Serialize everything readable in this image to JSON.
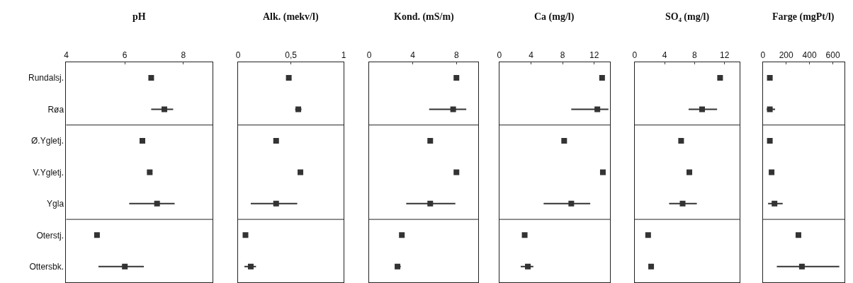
{
  "chart_data": [
    {
      "type": "scatter",
      "orientation": "horizontal",
      "title": "pH",
      "marker": "square",
      "categories": [
        "Rundalsj.",
        "Røa",
        "Ø.Ygletj.",
        "V.Ygletj.",
        "Ygla",
        "Oterstj.",
        "Ottersbk."
      ],
      "values": [
        6.9,
        7.35,
        6.6,
        6.85,
        7.1,
        5.05,
        6.0
      ],
      "errors": [
        null,
        [
          6.9,
          7.65
        ],
        null,
        null,
        [
          6.15,
          7.7
        ],
        null,
        [
          5.1,
          6.65
        ]
      ],
      "color": "#333333",
      "xlim": [
        4,
        9
      ],
      "xticks": [
        4,
        6,
        8
      ]
    },
    {
      "type": "scatter",
      "orientation": "horizontal",
      "title": "Alk. (mekv/l)",
      "marker": "square",
      "categories": [
        "Rundalsj.",
        "Røa",
        "Ø.Ygletj.",
        "V.Ygletj.",
        "Ygla",
        "Oterstj.",
        "Ottersbk."
      ],
      "values": [
        0.48,
        0.57,
        0.36,
        0.59,
        0.36,
        0.07,
        0.12
      ],
      "errors": [
        null,
        [
          0.54,
          0.6
        ],
        null,
        null,
        [
          0.12,
          0.56
        ],
        null,
        [
          0.06,
          0.17
        ]
      ],
      "color": "#333333",
      "xlim": [
        0,
        1
      ],
      "xticks": [
        0,
        {
          "value": 0.5,
          "label": "0,5"
        },
        1
      ],
      "tick_labels": "x"
    },
    {
      "type": "scatter",
      "orientation": "horizontal",
      "title": "Kond. (mS/m)",
      "marker": "square",
      "categories": [
        "Rundalsj.",
        "Røa",
        "Ø.Ygletj.",
        "V.Ygletj.",
        "Ygla",
        "Oterstj.",
        "Ottersbk."
      ],
      "values": [
        8.0,
        7.7,
        5.6,
        8.0,
        5.6,
        3.0,
        2.6
      ],
      "errors": [
        null,
        [
          5.5,
          8.9
        ],
        null,
        null,
        [
          3.4,
          7.9
        ],
        null,
        [
          2.4,
          2.9
        ]
      ],
      "color": "#333333",
      "xlim": [
        0,
        10
      ],
      "xticks": [
        0,
        4,
        8
      ],
      "tick_labels": "x"
    },
    {
      "type": "scatter",
      "orientation": "horizontal",
      "title": "Ca (mg/l)",
      "marker": "square",
      "categories": [
        "Rundalsj.",
        "Røa",
        "Ø.Ygletj.",
        "V.Ygletj.",
        "Ygla",
        "Oterstj.",
        "Ottersbk."
      ],
      "values": [
        13.0,
        12.4,
        8.2,
        13.1,
        9.1,
        3.2,
        3.6
      ],
      "errors": [
        null,
        [
          9.1,
          13.8
        ],
        null,
        null,
        [
          5.6,
          11.5
        ],
        null,
        [
          2.7,
          4.3
        ]
      ],
      "color": "#333333",
      "xlim": [
        0,
        14
      ],
      "xticks": [
        0,
        4,
        8,
        12
      ],
      "tick_labels": "x"
    },
    {
      "type": "scatter",
      "orientation": "horizontal",
      "title": "SO₄ (mg/l)",
      "marker": "square",
      "categories": [
        "Rundalsj.",
        "Røa",
        "Ø.Ygletj.",
        "V.Ygletj.",
        "Ygla",
        "Oterstj.",
        "Ottersbk."
      ],
      "values": [
        11.4,
        9.0,
        6.2,
        7.3,
        6.4,
        1.8,
        2.2
      ],
      "errors": [
        null,
        [
          7.2,
          11.0
        ],
        null,
        null,
        [
          4.6,
          8.3
        ],
        null,
        [
          2.0,
          2.5
        ]
      ],
      "color": "#333333",
      "xlim": [
        0,
        14
      ],
      "xticks": [
        0,
        4,
        8,
        12
      ],
      "tick_labels": "x"
    },
    {
      "type": "scatter",
      "orientation": "horizontal",
      "title": "Farge (mgPt/l)",
      "marker": "square",
      "categories": [
        "Rundalsj.",
        "Røa",
        "Ø.Ygletj.",
        "V.Ygletj.",
        "Ygla",
        "Oterstj.",
        "Ottersbk."
      ],
      "values": [
        60,
        60,
        60,
        75,
        100,
        305,
        335
      ],
      "errors": [
        null,
        [
          33,
          105
        ],
        null,
        null,
        [
          45,
          170
        ],
        null,
        [
          120,
          655
        ]
      ],
      "color": "#333333",
      "xlim": [
        0,
        700
      ],
      "xticks": [
        0,
        200,
        400,
        600
      ],
      "tick_labels": "x"
    }
  ]
}
